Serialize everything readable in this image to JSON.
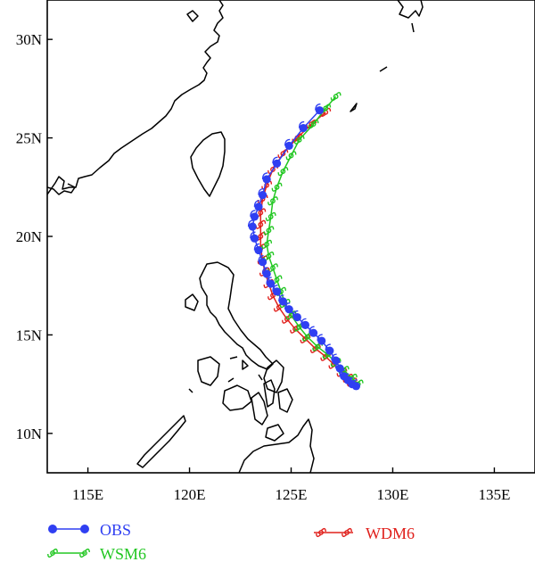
{
  "map": {
    "lon_range": [
      113,
      137
    ],
    "lat_range": [
      8,
      32
    ],
    "x_ticks": [
      {
        "lon": 115,
        "label": "115E"
      },
      {
        "lon": 120,
        "label": "120E"
      },
      {
        "lon": 125,
        "label": "125E"
      },
      {
        "lon": 130,
        "label": "130E"
      },
      {
        "lon": 135,
        "label": "135E"
      }
    ],
    "y_ticks": [
      {
        "lat": 10,
        "label": "10N"
      },
      {
        "lat": 15,
        "label": "15N"
      },
      {
        "lat": 20,
        "label": "20N"
      },
      {
        "lat": 25,
        "label": "25N"
      },
      {
        "lat": 30,
        "label": "30N"
      }
    ]
  },
  "chart_data": {
    "type": "line",
    "series": [
      {
        "name": "OBS",
        "color": "#2f3ff2",
        "marker": "dot",
        "points": [
          [
            128.2,
            12.4
          ],
          [
            128.0,
            12.5
          ],
          [
            127.8,
            12.7
          ],
          [
            127.6,
            12.9
          ],
          [
            127.4,
            13.3
          ],
          [
            127.2,
            13.7
          ],
          [
            126.9,
            14.2
          ],
          [
            126.5,
            14.7
          ],
          [
            126.1,
            15.1
          ],
          [
            125.7,
            15.5
          ],
          [
            125.3,
            15.9
          ],
          [
            124.9,
            16.3
          ],
          [
            124.6,
            16.7
          ],
          [
            124.3,
            17.2
          ],
          [
            124.0,
            17.6
          ],
          [
            123.8,
            18.1
          ],
          [
            123.6,
            18.7
          ],
          [
            123.4,
            19.3
          ],
          [
            123.2,
            19.9
          ],
          [
            123.1,
            20.5
          ],
          [
            123.2,
            21.0
          ],
          [
            123.4,
            21.5
          ],
          [
            123.6,
            22.1
          ],
          [
            123.8,
            22.9
          ],
          [
            124.3,
            23.7
          ],
          [
            124.9,
            24.6
          ],
          [
            125.6,
            25.5
          ],
          [
            126.4,
            26.4
          ]
        ]
      },
      {
        "name": "WSM6",
        "color": "#22c722",
        "marker": "cyclone",
        "points": [
          [
            128.3,
            12.5
          ],
          [
            128.0,
            12.8
          ],
          [
            127.6,
            13.2
          ],
          [
            127.2,
            13.6
          ],
          [
            126.8,
            14.0
          ],
          [
            126.3,
            14.4
          ],
          [
            125.8,
            14.9
          ],
          [
            125.4,
            15.4
          ],
          [
            125.0,
            16.0
          ],
          [
            124.7,
            16.6
          ],
          [
            124.5,
            17.2
          ],
          [
            124.3,
            17.8
          ],
          [
            124.1,
            18.4
          ],
          [
            123.9,
            19.0
          ],
          [
            123.8,
            19.6
          ],
          [
            123.9,
            20.3
          ],
          [
            124.0,
            21.0
          ],
          [
            124.1,
            21.8
          ],
          [
            124.3,
            22.5
          ],
          [
            124.6,
            23.3
          ],
          [
            125.0,
            24.1
          ],
          [
            125.4,
            24.9
          ],
          [
            126.1,
            25.7
          ],
          [
            126.7,
            26.5
          ],
          [
            127.2,
            27.1
          ]
        ]
      },
      {
        "name": "WDM6",
        "color": "#e0201c",
        "marker": "cyclone",
        "points": [
          [
            128.0,
            12.6
          ],
          [
            127.8,
            12.8
          ],
          [
            127.5,
            13.1
          ],
          [
            127.1,
            13.5
          ],
          [
            126.7,
            13.9
          ],
          [
            126.2,
            14.3
          ],
          [
            125.7,
            14.8
          ],
          [
            125.2,
            15.3
          ],
          [
            124.8,
            15.8
          ],
          [
            124.4,
            16.4
          ],
          [
            124.1,
            17.0
          ],
          [
            123.9,
            17.6
          ],
          [
            123.7,
            18.2
          ],
          [
            123.6,
            18.8
          ],
          [
            123.5,
            19.4
          ],
          [
            123.5,
            20.0
          ],
          [
            123.5,
            20.6
          ],
          [
            123.5,
            21.2
          ],
          [
            123.6,
            21.9
          ],
          [
            123.8,
            22.6
          ],
          [
            124.1,
            23.4
          ],
          [
            124.6,
            24.2
          ],
          [
            125.3,
            25.0
          ],
          [
            126.0,
            25.7
          ],
          [
            126.7,
            26.3
          ]
        ]
      }
    ]
  },
  "legend": {
    "items": [
      {
        "label": "OBS",
        "color": "#2f3ff2"
      },
      {
        "label": "WDM6",
        "color": "#e0201c"
      },
      {
        "label": "WSM6",
        "color": "#22c722"
      }
    ]
  }
}
